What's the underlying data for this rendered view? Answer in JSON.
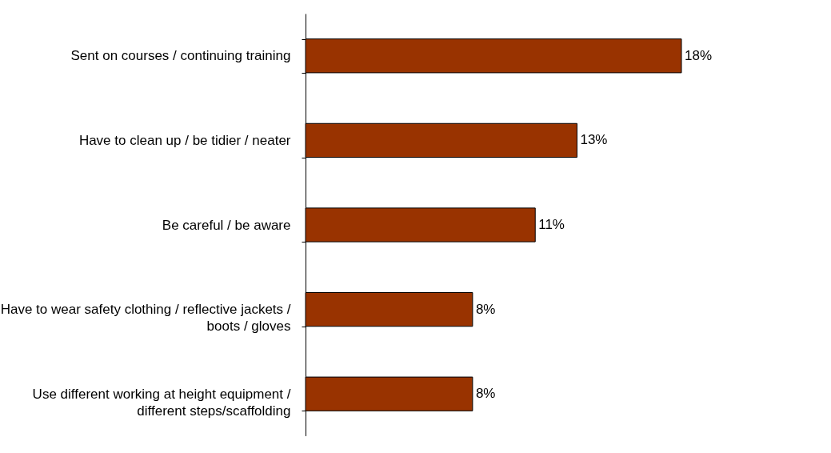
{
  "chart_data": {
    "type": "bar",
    "orientation": "horizontal",
    "categories": [
      "Sent on courses / continuing training",
      "Have to clean up / be tidier / neater",
      "Be careful / be aware",
      "Have to wear safety clothing / reflective jackets / boots / gloves",
      "Use different working at height equipment / different steps/scaffolding"
    ],
    "values": [
      18,
      13,
      11,
      8,
      8
    ],
    "value_labels": [
      "18%",
      "13%",
      "11%",
      "8%",
      "8%"
    ],
    "color": "#993300"
  }
}
